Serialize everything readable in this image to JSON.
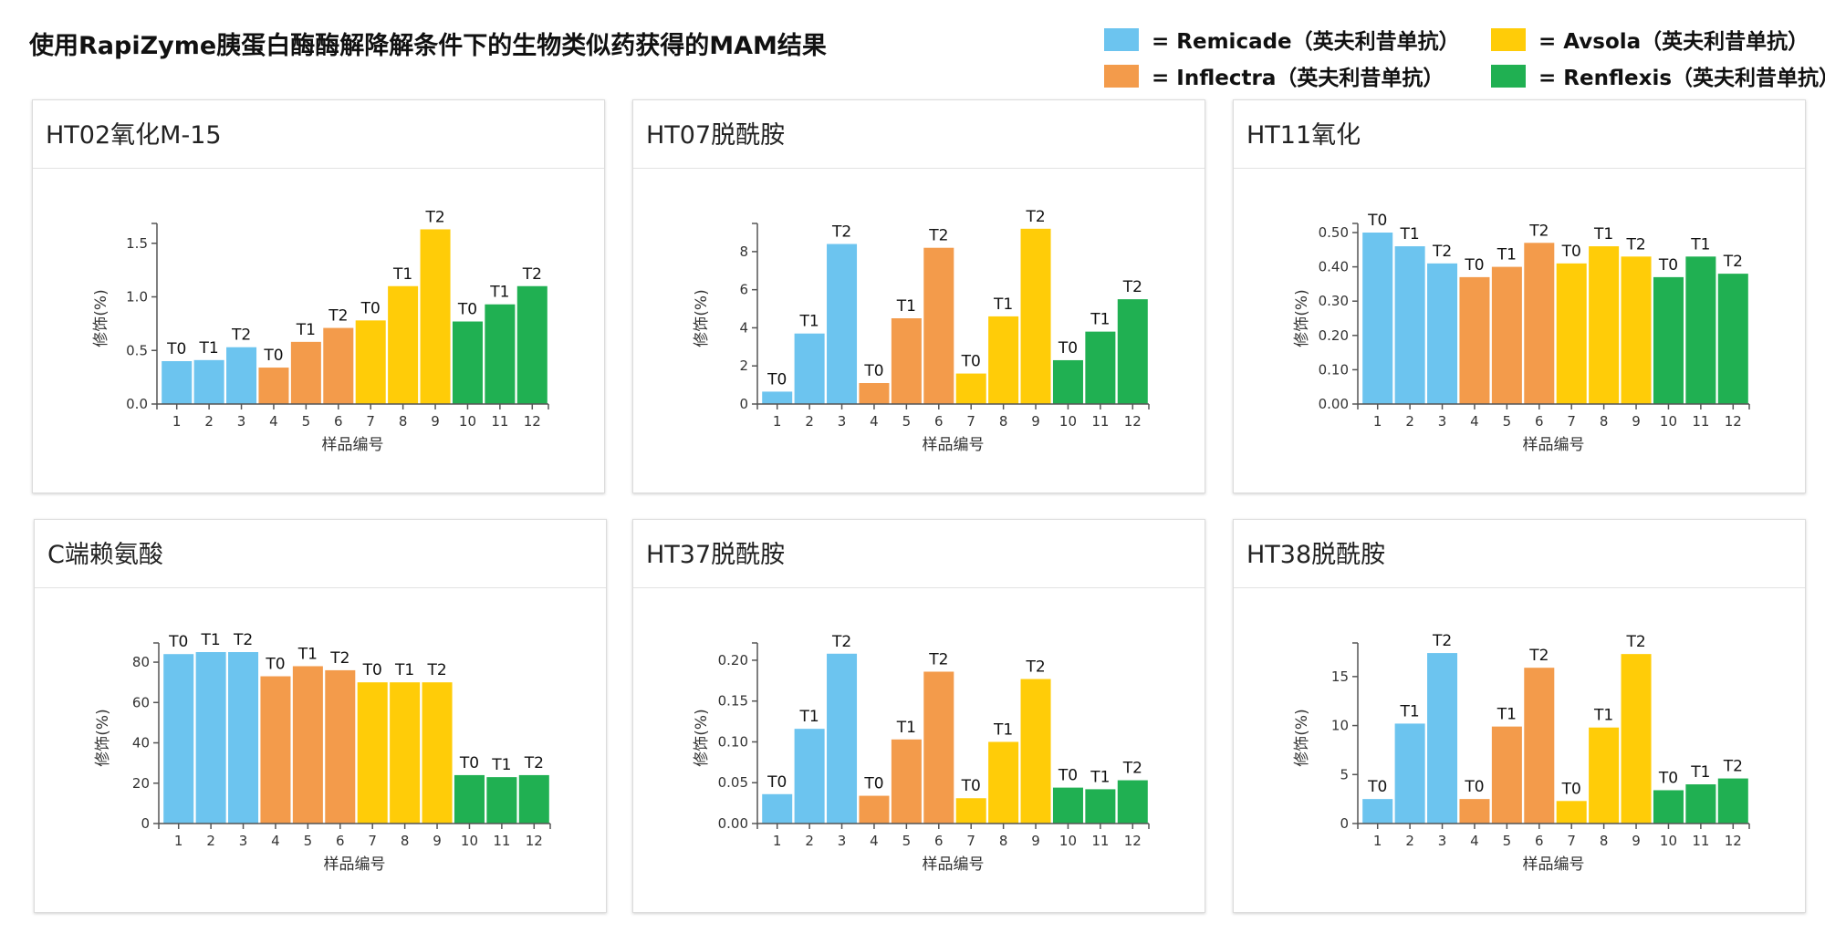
{
  "title": "使用RapiZyme胰蛋白酶酶解降解条件下的生物类似药获得的MAM结果",
  "legend": [
    {
      "label": "= Remicade（英夫利昔单抗）",
      "color": "#6CC4EF"
    },
    {
      "label": "= Avsola（英夫利昔单抗）",
      "color": "#FFCC08"
    },
    {
      "label": "= Inflectra（英夫利昔单抗）",
      "color": "#F39B4B"
    },
    {
      "label": "= Renflexis（英夫利昔单抗）",
      "color": "#20B052"
    }
  ],
  "chart_data": [
    {
      "type": "bar",
      "title": "HT02氧化M-15",
      "xlabel": "样品编号",
      "ylabel": "修饰(%)",
      "categories": [
        "1",
        "2",
        "3",
        "4",
        "5",
        "6",
        "7",
        "8",
        "9",
        "10",
        "11",
        "12"
      ],
      "values": [
        0.4,
        0.41,
        0.53,
        0.34,
        0.58,
        0.71,
        0.78,
        1.1,
        1.63,
        0.77,
        0.93,
        1.1
      ],
      "labels": [
        "T0",
        "T1",
        "T2",
        "T0",
        "T1",
        "T2",
        "T0",
        "T1",
        "T2",
        "T0",
        "T1",
        "T2"
      ],
      "yticks": [
        "0.0",
        "0.5",
        "1.0",
        "1.5"
      ],
      "ylim": [
        0,
        1.6
      ],
      "grid": false
    },
    {
      "type": "bar",
      "title": "HT07脱酰胺",
      "xlabel": "样品编号",
      "ylabel": "修饰(%)",
      "categories": [
        "1",
        "2",
        "3",
        "4",
        "5",
        "6",
        "7",
        "8",
        "9",
        "10",
        "11",
        "12"
      ],
      "values": [
        0.65,
        3.7,
        8.4,
        1.1,
        4.5,
        8.2,
        1.6,
        4.6,
        9.2,
        2.3,
        3.8,
        5.5
      ],
      "labels": [
        "T0",
        "T1",
        "T2",
        "T0",
        "T1",
        "T2",
        "T0",
        "T1",
        "T2",
        "T0",
        "T1",
        "T2"
      ],
      "yticks": [
        "0",
        "2",
        "4",
        "6",
        "8"
      ],
      "ylim": [
        0,
        9
      ],
      "grid": false
    },
    {
      "type": "bar",
      "title": "HT11氧化",
      "xlabel": "样品编号",
      "ylabel": "修饰(%)",
      "categories": [
        "1",
        "2",
        "3",
        "4",
        "5",
        "6",
        "7",
        "8",
        "9",
        "10",
        "11",
        "12"
      ],
      "values": [
        0.5,
        0.46,
        0.41,
        0.37,
        0.4,
        0.47,
        0.41,
        0.46,
        0.43,
        0.37,
        0.43,
        0.38
      ],
      "labels": [
        "T0",
        "T1",
        "T2",
        "T0",
        "T1",
        "T2",
        "T0",
        "T1",
        "T2",
        "T0",
        "T1",
        "T2"
      ],
      "yticks": [
        "0.00",
        "0.10",
        "0.20",
        "0.30",
        "0.40",
        "0.50"
      ],
      "ylim": [
        0,
        0.5
      ],
      "grid": false
    },
    {
      "type": "bar",
      "title": "C端赖氨酸",
      "xlabel": "样品编号",
      "ylabel": "修饰(%)",
      "categories": [
        "1",
        "2",
        "3",
        "4",
        "5",
        "6",
        "7",
        "8",
        "9",
        "10",
        "11",
        "12"
      ],
      "values": [
        84,
        85,
        85,
        73,
        78,
        76,
        70,
        70,
        70,
        24,
        23,
        24
      ],
      "labels": [
        "T0",
        "T1",
        "T2",
        "T0",
        "T1",
        "T2",
        "T0",
        "T1",
        "T2",
        "T0",
        "T1",
        "T2"
      ],
      "yticks": [
        "0",
        "20",
        "40",
        "60",
        "80"
      ],
      "ylim": [
        0,
        85
      ],
      "grid": false
    },
    {
      "type": "bar",
      "title": "HT37脱酰胺",
      "xlabel": "样品编号",
      "ylabel": "修饰(%)",
      "categories": [
        "1",
        "2",
        "3",
        "4",
        "5",
        "6",
        "7",
        "8",
        "9",
        "10",
        "11",
        "12"
      ],
      "values": [
        0.036,
        0.116,
        0.208,
        0.034,
        0.103,
        0.186,
        0.031,
        0.1,
        0.177,
        0.044,
        0.042,
        0.053
      ],
      "labels": [
        "T0",
        "T1",
        "T2",
        "T0",
        "T1",
        "T2",
        "T0",
        "T1",
        "T2",
        "T0",
        "T1",
        "T2"
      ],
      "yticks": [
        "0.00",
        "0.05",
        "0.10",
        "0.15",
        "0.20"
      ],
      "ylim": [
        0,
        0.21
      ],
      "grid": false
    },
    {
      "type": "bar",
      "title": "HT38脱酰胺",
      "xlabel": "样品编号",
      "ylabel": "修饰(%)",
      "categories": [
        "1",
        "2",
        "3",
        "4",
        "5",
        "6",
        "7",
        "8",
        "9",
        "10",
        "11",
        "12"
      ],
      "values": [
        2.5,
        10.2,
        17.4,
        2.5,
        9.9,
        15.9,
        2.3,
        9.8,
        17.3,
        3.4,
        4.0,
        4.6
      ],
      "labels": [
        "T0",
        "T1",
        "T2",
        "T0",
        "T1",
        "T2",
        "T0",
        "T1",
        "T2",
        "T0",
        "T1",
        "T2"
      ],
      "yticks": [
        "0",
        "5",
        "10",
        "15"
      ],
      "ylim": [
        0,
        17.5
      ],
      "grid": false
    }
  ]
}
